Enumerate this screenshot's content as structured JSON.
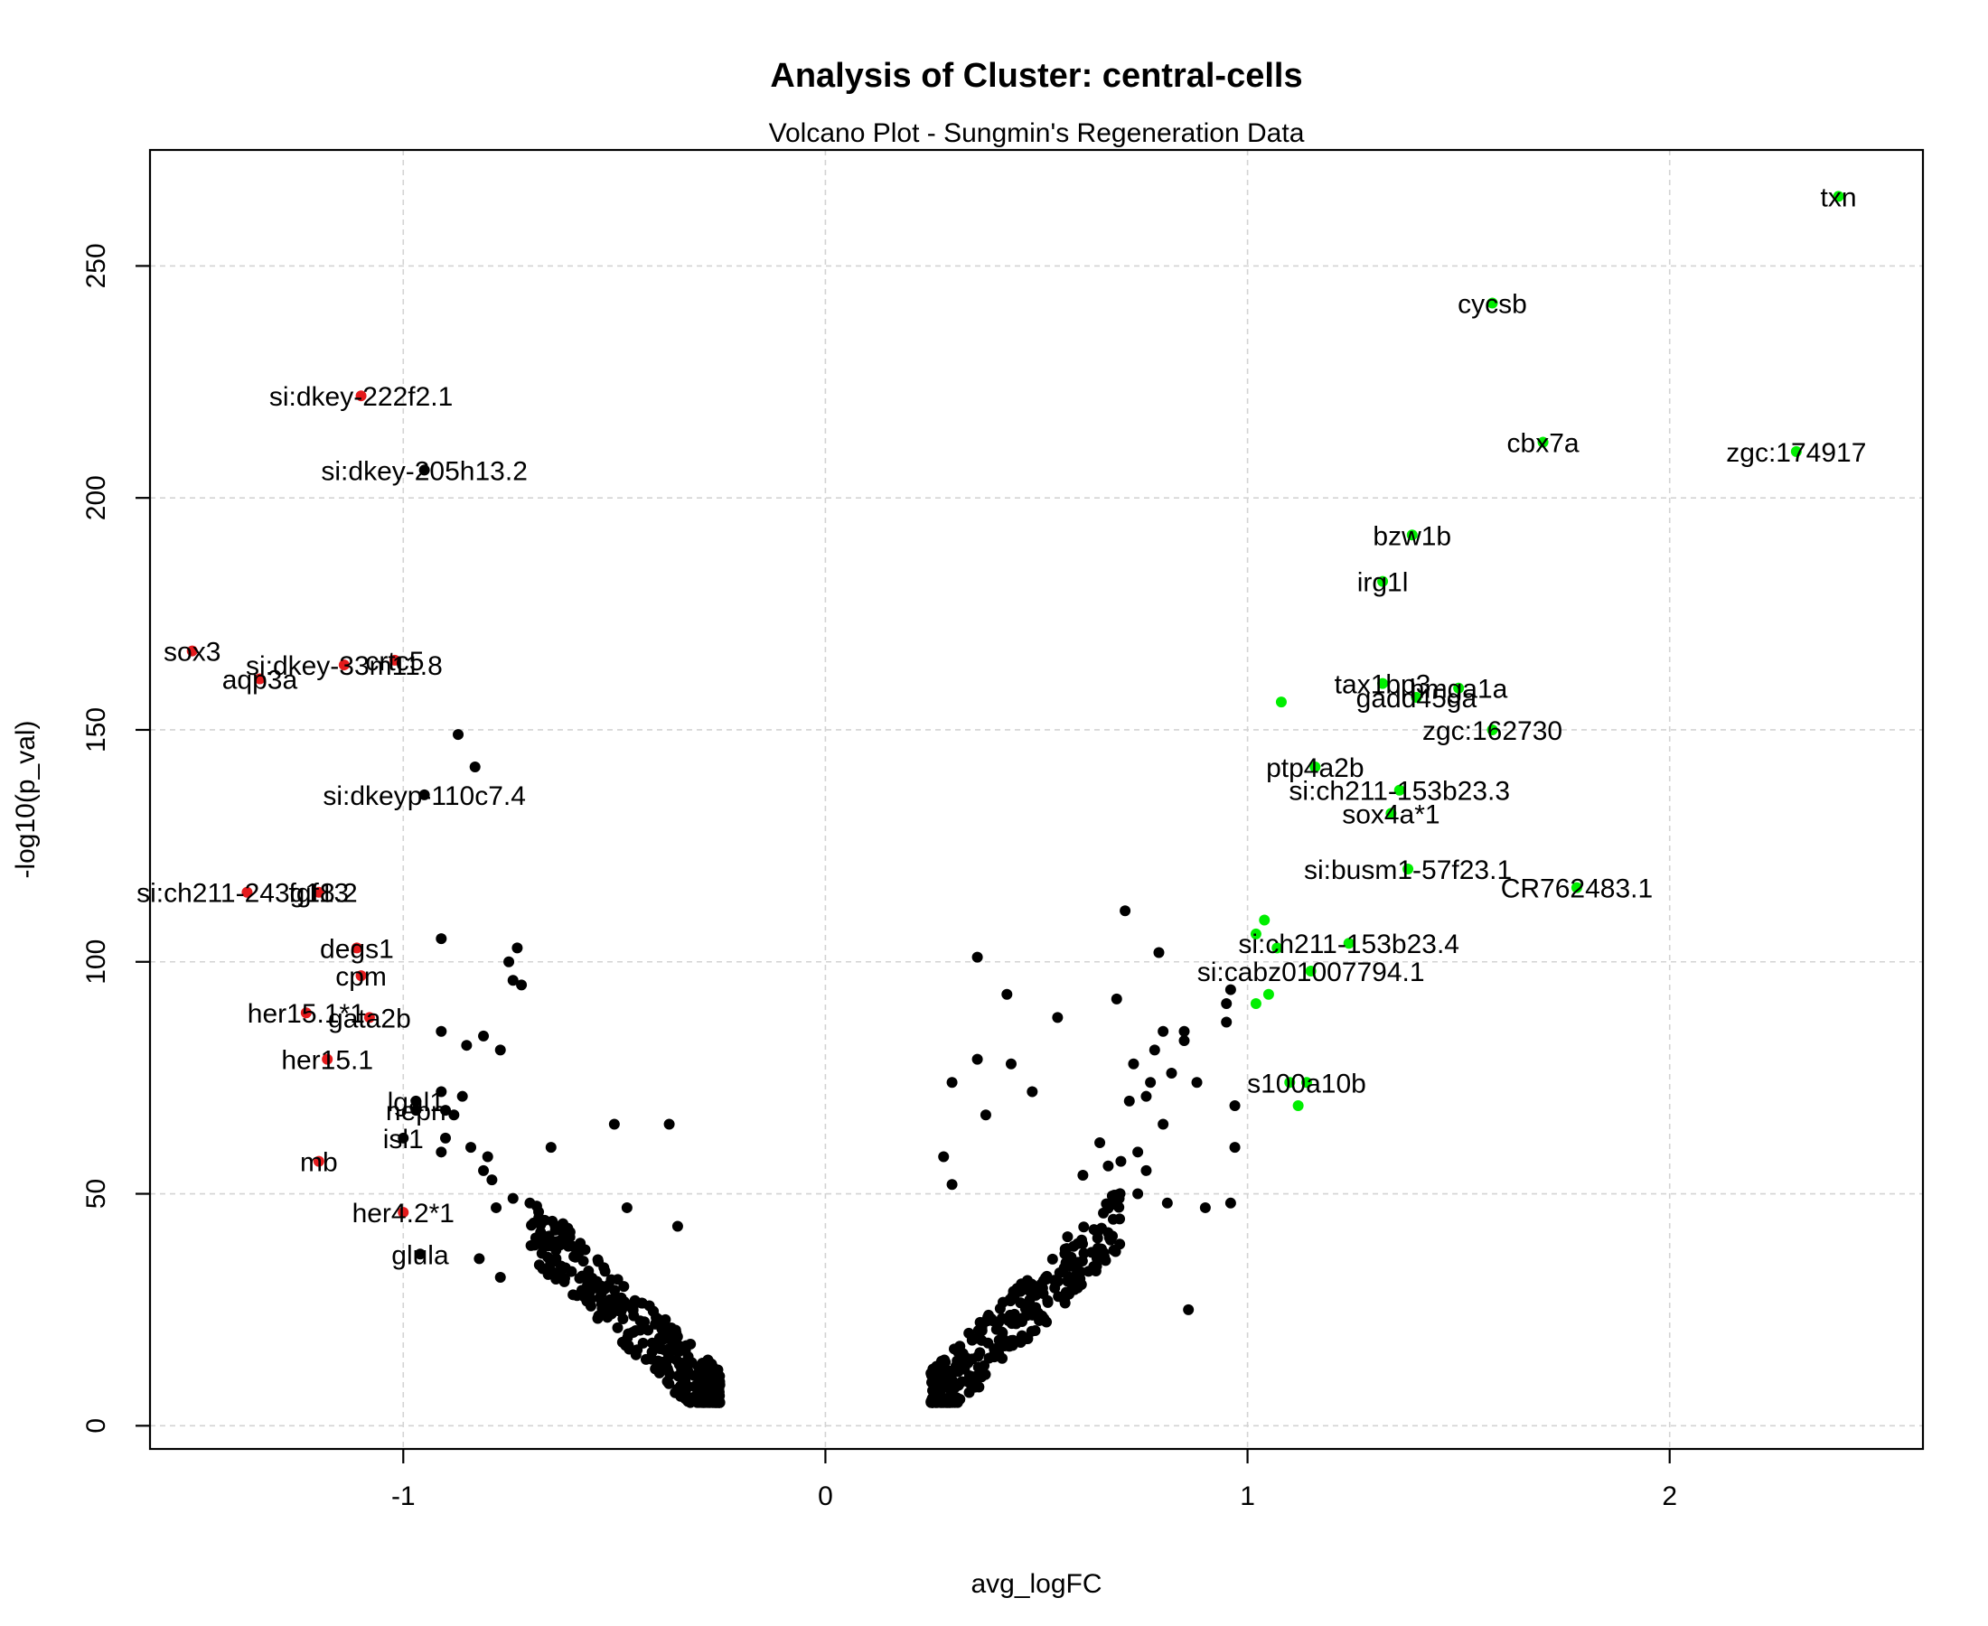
{
  "chart_data": {
    "type": "scatter",
    "title": "Analysis of Cluster: central-cells",
    "subtitle": "Volcano Plot - Sungmin's Regeneration Data",
    "xlabel": "avg_logFC",
    "ylabel": "-log10(p_val)",
    "xlim": [
      -1.6,
      2.6
    ],
    "ylim": [
      -5,
      275
    ],
    "xticks": [
      -1,
      0,
      1,
      2
    ],
    "yticks": [
      0,
      50,
      100,
      150,
      200,
      250
    ],
    "grid": true,
    "colors": {
      "down": "#e41a1c",
      "up": "#00ee00",
      "other": "#000000"
    },
    "labeled_points": [
      {
        "label": "txn",
        "x": 2.4,
        "y": 265,
        "group": "up"
      },
      {
        "label": "cycsb",
        "x": 1.58,
        "y": 242,
        "group": "up"
      },
      {
        "label": "cbx7a",
        "x": 1.7,
        "y": 212,
        "group": "up"
      },
      {
        "label": "zgc:174917",
        "x": 2.3,
        "y": 210,
        "group": "up"
      },
      {
        "label": "bzw1b",
        "x": 1.39,
        "y": 192,
        "group": "up"
      },
      {
        "label": "irg1l",
        "x": 1.32,
        "y": 182,
        "group": "up"
      },
      {
        "label": "tax1bp3",
        "x": 1.32,
        "y": 160,
        "group": "up"
      },
      {
        "label": "hmga1a",
        "x": 1.5,
        "y": 159,
        "group": "up"
      },
      {
        "label": "gadd45ga",
        "x": 1.4,
        "y": 157,
        "group": "up"
      },
      {
        "label": "zgc:162730",
        "x": 1.58,
        "y": 150,
        "group": "up"
      },
      {
        "label": "ptp4a2b",
        "x": 1.16,
        "y": 142,
        "group": "up"
      },
      {
        "label": "si:ch211-153b23.3",
        "x": 1.36,
        "y": 137,
        "group": "up"
      },
      {
        "label": "sox4a*1",
        "x": 1.34,
        "y": 132,
        "group": "up"
      },
      {
        "label": "si:busm1-57f23.1",
        "x": 1.38,
        "y": 120,
        "group": "up"
      },
      {
        "label": "CR762483.1",
        "x": 1.78,
        "y": 116,
        "group": "up"
      },
      {
        "label": "si:ch211-153b23.4",
        "x": 1.24,
        "y": 104,
        "group": "up"
      },
      {
        "label": "si:cabz01007794.1",
        "x": 1.15,
        "y": 98,
        "group": "up"
      },
      {
        "label": "s100a10b",
        "x": 1.14,
        "y": 74,
        "group": "up"
      },
      {
        "label": "si:dkey-222f2.1",
        "x": -1.1,
        "y": 222,
        "group": "down"
      },
      {
        "label": "si:dkey-205h13.2",
        "x": -0.95,
        "y": 206,
        "group": "other"
      },
      {
        "label": "sox3",
        "x": -1.5,
        "y": 167,
        "group": "down"
      },
      {
        "label": "si:dkey-33m11.8",
        "x": -1.14,
        "y": 164,
        "group": "down"
      },
      {
        "label": "crtc5",
        "x": -1.02,
        "y": 165,
        "group": "down"
      },
      {
        "label": "aqp3a",
        "x": -1.34,
        "y": 161,
        "group": "down"
      },
      {
        "label": "si:dkeyp-110c7.4",
        "x": -0.95,
        "y": 136,
        "group": "other"
      },
      {
        "label": "si:ch211-243g18.2",
        "x": -1.37,
        "y": 115,
        "group": "down"
      },
      {
        "label": "fgf13",
        "x": -1.2,
        "y": 115,
        "group": "down"
      },
      {
        "label": "degs1",
        "x": -1.11,
        "y": 103,
        "group": "down"
      },
      {
        "label": "cpm",
        "x": -1.1,
        "y": 97,
        "group": "down"
      },
      {
        "label": "her15.1*1",
        "x": -1.23,
        "y": 89,
        "group": "down"
      },
      {
        "label": "gata2b",
        "x": -1.08,
        "y": 88,
        "group": "down"
      },
      {
        "label": "her15.1",
        "x": -1.18,
        "y": 79,
        "group": "down"
      },
      {
        "label": "lgal1",
        "x": -0.97,
        "y": 70,
        "group": "other"
      },
      {
        "label": "nepn",
        "x": -0.97,
        "y": 68,
        "group": "other"
      },
      {
        "label": "isl1",
        "x": -1.0,
        "y": 62,
        "group": "other"
      },
      {
        "label": "mb",
        "x": -1.2,
        "y": 57,
        "group": "down"
      },
      {
        "label": "her4.2*1",
        "x": -1.0,
        "y": 46,
        "group": "down"
      },
      {
        "label": "glula",
        "x": -0.96,
        "y": 37,
        "group": "other"
      }
    ],
    "unlabeled_up": [
      {
        "x": 1.08,
        "y": 156
      },
      {
        "x": 1.04,
        "y": 109
      },
      {
        "x": 1.02,
        "y": 106
      },
      {
        "x": 1.07,
        "y": 103
      },
      {
        "x": 1.05,
        "y": 93
      },
      {
        "x": 1.02,
        "y": 91
      },
      {
        "x": 1.1,
        "y": 74
      },
      {
        "x": 1.12,
        "y": 69
      }
    ],
    "unlabeled_other": [
      {
        "x": -0.87,
        "y": 149
      },
      {
        "x": -0.83,
        "y": 142
      },
      {
        "x": -0.91,
        "y": 105
      },
      {
        "x": -0.75,
        "y": 100
      },
      {
        "x": -0.73,
        "y": 103
      },
      {
        "x": -0.74,
        "y": 96
      },
      {
        "x": -0.72,
        "y": 95
      },
      {
        "x": -0.91,
        "y": 85
      },
      {
        "x": -0.81,
        "y": 84
      },
      {
        "x": -0.85,
        "y": 82
      },
      {
        "x": -0.77,
        "y": 81
      },
      {
        "x": -0.91,
        "y": 72
      },
      {
        "x": -0.86,
        "y": 71
      },
      {
        "x": -0.9,
        "y": 68
      },
      {
        "x": -0.88,
        "y": 67
      },
      {
        "x": -0.5,
        "y": 65
      },
      {
        "x": -0.37,
        "y": 65
      },
      {
        "x": -0.9,
        "y": 62
      },
      {
        "x": -0.84,
        "y": 60
      },
      {
        "x": -0.65,
        "y": 60
      },
      {
        "x": -0.91,
        "y": 59
      },
      {
        "x": -0.8,
        "y": 58
      },
      {
        "x": -0.81,
        "y": 55
      },
      {
        "x": -0.79,
        "y": 53
      },
      {
        "x": -0.74,
        "y": 49
      },
      {
        "x": -0.7,
        "y": 48
      },
      {
        "x": -0.78,
        "y": 47
      },
      {
        "x": -0.47,
        "y": 47
      },
      {
        "x": -0.35,
        "y": 43
      },
      {
        "x": -0.82,
        "y": 36
      },
      {
        "x": -0.77,
        "y": 32
      },
      {
        "x": 0.71,
        "y": 111
      },
      {
        "x": 0.36,
        "y": 101
      },
      {
        "x": 0.79,
        "y": 102
      },
      {
        "x": 0.43,
        "y": 93
      },
      {
        "x": 0.69,
        "y": 92
      },
      {
        "x": 0.55,
        "y": 88
      },
      {
        "x": 0.96,
        "y": 94
      },
      {
        "x": 0.95,
        "y": 91
      },
      {
        "x": 0.95,
        "y": 87
      },
      {
        "x": 0.8,
        "y": 85
      },
      {
        "x": 0.85,
        "y": 85
      },
      {
        "x": 0.85,
        "y": 83
      },
      {
        "x": 0.78,
        "y": 81
      },
      {
        "x": 0.36,
        "y": 79
      },
      {
        "x": 0.44,
        "y": 78
      },
      {
        "x": 0.73,
        "y": 78
      },
      {
        "x": 0.82,
        "y": 76
      },
      {
        "x": 0.88,
        "y": 74
      },
      {
        "x": 0.3,
        "y": 74
      },
      {
        "x": 0.49,
        "y": 72
      },
      {
        "x": 0.77,
        "y": 74
      },
      {
        "x": 0.76,
        "y": 71
      },
      {
        "x": 0.72,
        "y": 70
      },
      {
        "x": 0.97,
        "y": 69
      },
      {
        "x": 0.38,
        "y": 67
      },
      {
        "x": 0.8,
        "y": 65
      },
      {
        "x": 0.65,
        "y": 61
      },
      {
        "x": 0.97,
        "y": 60
      },
      {
        "x": 0.74,
        "y": 59
      },
      {
        "x": 0.28,
        "y": 58
      },
      {
        "x": 0.7,
        "y": 57
      },
      {
        "x": 0.67,
        "y": 56
      },
      {
        "x": 0.61,
        "y": 54
      },
      {
        "x": 0.76,
        "y": 55
      },
      {
        "x": 0.86,
        "y": 25
      },
      {
        "x": 0.96,
        "y": 48
      },
      {
        "x": 0.3,
        "y": 52
      },
      {
        "x": 0.74,
        "y": 50
      },
      {
        "x": 0.81,
        "y": 48
      },
      {
        "x": 0.9,
        "y": 47
      }
    ],
    "cloud_down": {
      "x_range": [
        -0.7,
        -0.25
      ],
      "y_range": [
        5,
        50
      ],
      "n": 330
    },
    "cloud_up": {
      "x_range": [
        0.25,
        0.7
      ],
      "y_range": [
        5,
        55
      ],
      "n": 300
    }
  }
}
